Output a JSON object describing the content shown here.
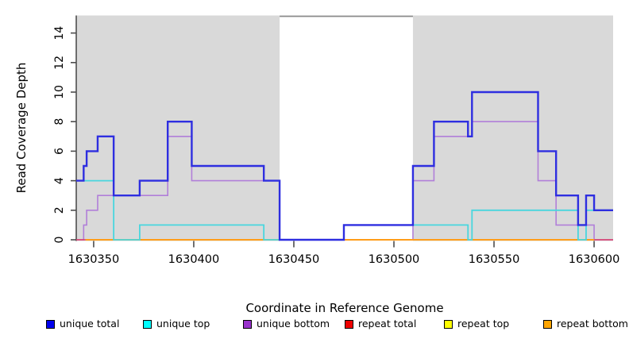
{
  "chart_data": {
    "type": "line",
    "subtype": "step-after-coverage-plot",
    "title": "",
    "xlabel": "Coordinate in Reference Genome",
    "ylabel": "Read Coverage Depth",
    "xlim": [
      1630341.3,
      1630609.5
    ],
    "ylim": [
      0,
      15.16
    ],
    "grid": "off",
    "legend_position": "bottom",
    "background_color": "#ffffff",
    "shaded_region_color": "#d9d9d9",
    "shaded_regions": [
      {
        "x0": 1630341.3,
        "x1": 1630442.9
      },
      {
        "x0": 1630509.5,
        "x1": 1630609.5
      }
    ],
    "gap_top_border": {
      "x0": 1630442.9,
      "x1": 1630509.5,
      "color": "#8a8a8a"
    },
    "x_ticks": [
      {
        "value": 1630350,
        "label": "1630350"
      },
      {
        "value": 1630400,
        "label": "1630400"
      },
      {
        "value": 1630450,
        "label": "1630450"
      },
      {
        "value": 1630500,
        "label": "1630500"
      },
      {
        "value": 1630550,
        "label": "1630550"
      },
      {
        "value": 1630600,
        "label": "1630600"
      }
    ],
    "y_ticks": [
      {
        "value": 0,
        "label": "0"
      },
      {
        "value": 2,
        "label": "2"
      },
      {
        "value": 4,
        "label": "4"
      },
      {
        "value": 6,
        "label": "6"
      },
      {
        "value": 8,
        "label": "8"
      },
      {
        "value": 10,
        "label": "10"
      },
      {
        "value": 12,
        "label": "12"
      },
      {
        "value": 14,
        "label": "14"
      }
    ],
    "series": [
      {
        "name": "unique total",
        "line_color": "#2e2ee0",
        "swatch_color": "#0000ee",
        "line_width": 2.4,
        "z_order": 6,
        "points": [
          [
            1630341.3,
            4
          ],
          [
            1630345,
            5
          ],
          [
            1630346.5,
            6
          ],
          [
            1630352,
            7
          ],
          [
            1630360,
            3
          ],
          [
            1630373,
            4
          ],
          [
            1630387,
            8
          ],
          [
            1630399,
            5
          ],
          [
            1630435,
            4
          ],
          [
            1630442.9,
            0
          ],
          [
            1630475,
            1
          ],
          [
            1630509.5,
            5
          ],
          [
            1630520,
            8
          ],
          [
            1630537,
            7
          ],
          [
            1630539,
            10
          ],
          [
            1630572,
            6
          ],
          [
            1630581,
            3
          ],
          [
            1630592,
            1
          ],
          [
            1630596,
            3
          ],
          [
            1630600,
            2
          ],
          [
            1630609.5,
            2
          ]
        ]
      },
      {
        "name": "unique top",
        "line_color": "#49d6de",
        "swatch_color": "#00ffff",
        "line_width": 1.8,
        "z_order": 5,
        "points": [
          [
            1630341.3,
            4
          ],
          [
            1630360,
            0
          ],
          [
            1630373,
            1
          ],
          [
            1630435,
            0
          ],
          [
            1630442.9,
            null
          ],
          [
            1630509.5,
            1
          ],
          [
            1630537,
            0
          ],
          [
            1630539,
            2
          ],
          [
            1630592,
            0
          ],
          [
            1630596,
            2
          ],
          [
            1630609.5,
            2
          ]
        ]
      },
      {
        "name": "unique bottom",
        "line_color": "#b17fd9",
        "swatch_color": "#9932cc",
        "line_width": 1.6,
        "z_order": 1,
        "points": [
          [
            1630341.3,
            0
          ],
          [
            1630345,
            1
          ],
          [
            1630346.5,
            2
          ],
          [
            1630352,
            3
          ],
          [
            1630387,
            7
          ],
          [
            1630399,
            4
          ],
          [
            1630442.9,
            0
          ],
          [
            1630509.5,
            4
          ],
          [
            1630520,
            7
          ],
          [
            1630539,
            8
          ],
          [
            1630572,
            4
          ],
          [
            1630581,
            1
          ],
          [
            1630600,
            0
          ],
          [
            1630609.5,
            0
          ]
        ]
      },
      {
        "name": "repeat total",
        "line_color": "#dc3a66",
        "swatch_color": "#ee0000",
        "line_width": 1.6,
        "z_order": 2,
        "points": [
          [
            1630341.3,
            0
          ],
          [
            1630609.5,
            0
          ]
        ]
      },
      {
        "name": "repeat top",
        "line_color": "#ffff00",
        "swatch_color": "#ffff00",
        "line_width": 1.6,
        "z_order": 3,
        "points": [
          [
            1630346,
            0
          ],
          [
            1630600,
            0
          ]
        ]
      },
      {
        "name": "repeat bottom",
        "line_color": "#ff9d19",
        "swatch_color": "#ffa500",
        "line_width": 2.0,
        "z_order": 4,
        "points": [
          [
            1630346,
            0
          ],
          [
            1630600,
            0
          ]
        ]
      }
    ]
  },
  "layout_note_visible_text_only": "all visible text is bound from this JSON"
}
